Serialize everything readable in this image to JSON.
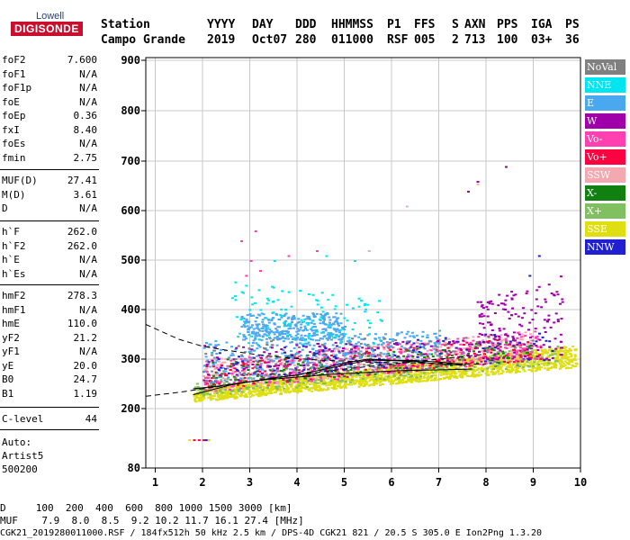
{
  "logo": {
    "top": "Lowell",
    "main": "DIGISONDE"
  },
  "header": {
    "labels": [
      "Station",
      "YYYY",
      "DAY",
      "DDD",
      "HHMMSS",
      "P1",
      "FFS",
      "S",
      "AXN",
      "PPS",
      "IGA",
      "PS"
    ],
    "values": [
      "Campo Grande",
      "2019",
      "Oct07",
      "280",
      "011000",
      "RSF",
      "005",
      "2",
      "713",
      "100",
      "03+",
      "36"
    ]
  },
  "params": {
    "group1": [
      {
        "name": "foF2",
        "value": "7.600"
      },
      {
        "name": "foF1",
        "value": "N/A"
      },
      {
        "name": "foF1p",
        "value": "N/A"
      },
      {
        "name": "foE",
        "value": "N/A"
      },
      {
        "name": "foEp",
        "value": "0.36"
      },
      {
        "name": "fxI",
        "value": "8.40"
      },
      {
        "name": "foEs",
        "value": "N/A"
      },
      {
        "name": "fmin",
        "value": "2.75"
      }
    ],
    "group2": [
      {
        "name": "MUF(D)",
        "value": "27.41"
      },
      {
        "name": "M(D)",
        "value": "3.61"
      },
      {
        "name": "D",
        "value": "N/A"
      }
    ],
    "group3": [
      {
        "name": "h`F",
        "value": "262.0"
      },
      {
        "name": "h`F2",
        "value": "262.0"
      },
      {
        "name": "h`E",
        "value": "N/A"
      },
      {
        "name": "h`Es",
        "value": "N/A"
      }
    ],
    "group4": [
      {
        "name": "hmF2",
        "value": "278.3"
      },
      {
        "name": "hmF1",
        "value": "N/A"
      },
      {
        "name": "hmE",
        "value": "110.0"
      },
      {
        "name": "yF2",
        "value": "21.2"
      },
      {
        "name": "yF1",
        "value": "N/A"
      },
      {
        "name": "yE",
        "value": "20.0"
      },
      {
        "name": "B0",
        "value": "24.7"
      },
      {
        "name": "B1",
        "value": "1.19"
      }
    ],
    "group5": [
      {
        "name": "C-level",
        "value": "44"
      }
    ]
  },
  "auto": {
    "line1": "Auto:",
    "line2": "Artist5",
    "line3": "500200"
  },
  "legend": [
    {
      "label": "NoVal",
      "color": "#808080"
    },
    {
      "label": "NNE",
      "color": "#00e5f0"
    },
    {
      "label": "E",
      "color": "#4aa8f0"
    },
    {
      "label": "W",
      "color": "#a000a8"
    },
    {
      "label": "Vo-",
      "color": "#ff40b0"
    },
    {
      "label": "Vo+",
      "color": "#ff0040"
    },
    {
      "label": "SSW",
      "color": "#f4a8b0"
    },
    {
      "label": "X-",
      "color": "#108010"
    },
    {
      "label": "X+",
      "color": "#80c060"
    },
    {
      "label": "SSE",
      "color": "#dede10"
    },
    {
      "label": "NNW",
      "color": "#2020d0"
    }
  ],
  "footer": {
    "line1": "D     100  200  400  600  800 1000 1500 3000 [km]",
    "line2": "MUF    7.9  8.0  8.5  9.2 10.2 11.7 16.1 27.4 [MHz]",
    "line3": "CGK21_2019280011000.RSF / 184fx512h 50 kHz 2.5 km / DPS-4D CGK21 821 / 20.5 S 305.0 E Ion2Png 1.3.20"
  },
  "chart_data": {
    "type": "scatter",
    "xlim": [
      0.8,
      10
    ],
    "ylim": [
      80,
      900
    ],
    "xticks": [
      1,
      2,
      3,
      4,
      5,
      6,
      7,
      8,
      9,
      10
    ],
    "yticks": [
      80,
      200,
      300,
      400,
      500,
      600,
      700,
      800,
      900
    ],
    "grid": true,
    "legend_placement": "right",
    "bands": [
      {
        "series": "SSE",
        "color": "#dede10",
        "x": [
          1.8,
          9.9
        ],
        "y_low": [
          215,
          285
        ],
        "y_high": [
          240,
          330
        ],
        "density": 2.2
      },
      {
        "series": "X+",
        "color": "#80c060",
        "x": [
          1.8,
          9.5
        ],
        "y_low": [
          225,
          290
        ],
        "y_high": [
          255,
          330
        ],
        "density": 0.4
      },
      {
        "series": "SSW",
        "color": "#f4a8b0",
        "x": [
          2.0,
          9.0
        ],
        "y_low": [
          235,
          300
        ],
        "y_high": [
          300,
          360
        ],
        "density": 0.7
      },
      {
        "series": "Vo-",
        "color": "#ff40b0",
        "x": [
          2.0,
          9.2
        ],
        "y_low": [
          235,
          300
        ],
        "y_high": [
          300,
          360
        ],
        "density": 0.5
      },
      {
        "series": "Vo+",
        "color": "#ff0040",
        "x": [
          2.0,
          9.2
        ],
        "y_low": [
          240,
          300
        ],
        "y_high": [
          290,
          350
        ],
        "density": 0.3
      },
      {
        "series": "X-",
        "color": "#108010",
        "x": [
          2.0,
          9.0
        ],
        "y_low": [
          240,
          300
        ],
        "y_high": [
          300,
          340
        ],
        "density": 0.25
      },
      {
        "series": "E",
        "color": "#4aa8f0",
        "x": [
          2.8,
          5.0
        ],
        "y_low": [
          340,
          340
        ],
        "y_high": [
          395,
          395
        ],
        "density": 1.5
      },
      {
        "series": "E",
        "color": "#4aa8f0",
        "x": [
          2.0,
          7.0
        ],
        "y_low": [
          250,
          300
        ],
        "y_high": [
          340,
          360
        ],
        "density": 0.7
      },
      {
        "series": "NNE",
        "color": "#00e5f0",
        "x": [
          2.6,
          5.8
        ],
        "y_low": [
          330,
          330
        ],
        "y_high": [
          460,
          420
        ],
        "density": 0.35
      },
      {
        "series": "W",
        "color": "#a000a8",
        "x": [
          7.8,
          9.6
        ],
        "y_low": [
          300,
          300
        ],
        "y_high": [
          420,
          470
        ],
        "density": 0.9
      },
      {
        "series": "W",
        "color": "#a000a8",
        "x": [
          2.0,
          7.8
        ],
        "y_low": [
          250,
          300
        ],
        "y_high": [
          330,
          340
        ],
        "density": 0.25
      },
      {
        "series": "NNW",
        "color": "#2020d0",
        "x": [
          2.2,
          9.4
        ],
        "y_low": [
          260,
          300
        ],
        "y_high": [
          320,
          360
        ],
        "density": 0.12
      },
      {
        "series": "NoVal",
        "color": "#808080",
        "x": [
          2.0,
          9.0
        ],
        "y_low": [
          240,
          290
        ],
        "y_high": [
          340,
          350
        ],
        "density": 0.15
      }
    ],
    "scatter_extra": [
      {
        "series": "Vo-",
        "color": "#ff40b0",
        "points": [
          [
            2.8,
            540
          ],
          [
            3.0,
            500
          ],
          [
            2.9,
            470
          ],
          [
            3.2,
            480
          ],
          [
            3.8,
            510
          ],
          [
            4.4,
            520
          ],
          [
            3.1,
            560
          ]
        ]
      },
      {
        "series": "NNE",
        "color": "#00e5f0",
        "points": [
          [
            3.5,
            500
          ],
          [
            4.6,
            510
          ],
          [
            2.9,
            450
          ],
          [
            5.2,
            500
          ]
        ]
      },
      {
        "series": "W",
        "color": "#a000a8",
        "points": [
          [
            7.8,
            660
          ],
          [
            8.4,
            690
          ],
          [
            7.6,
            640
          ]
        ]
      },
      {
        "series": "SSW",
        "color": "#f4a8b0",
        "points": [
          [
            7.8,
            655
          ],
          [
            6.3,
            610
          ],
          [
            5.5,
            520
          ]
        ]
      },
      {
        "series": "NNW",
        "color": "#2020d0",
        "points": [
          [
            9.1,
            510
          ],
          [
            8.9,
            470
          ]
        ]
      },
      {
        "series": "Vo+",
        "color": "#ff0040",
        "points": [
          [
            1.8,
            138
          ],
          [
            2.0,
            138
          ],
          [
            2.1,
            138
          ],
          [
            1.9,
            138
          ]
        ]
      },
      {
        "series": "SSE",
        "color": "#dede10",
        "points": [
          [
            1.7,
            138
          ],
          [
            2.1,
            138
          ]
        ]
      },
      {
        "series": "NNW",
        "color": "#2020d0",
        "points": [
          [
            2.05,
            138
          ]
        ]
      }
    ],
    "lines": [
      {
        "style": "dashed",
        "x": [
          0.8,
          1.5,
          2.0,
          2.5,
          3.0,
          3.5,
          4.0,
          4.5,
          5.0,
          5.5,
          6.0,
          6.5,
          7.0,
          7.5,
          8.0
        ],
        "y": [
          370,
          340,
          326,
          318,
          311,
          305,
          301,
          298,
          296,
          294,
          293,
          292,
          291,
          290,
          290
        ]
      },
      {
        "style": "dashed",
        "x": [
          0.8,
          1.5,
          2.0,
          2.5,
          3.0,
          3.5,
          4.0,
          4.5,
          5.0,
          5.5,
          6.0,
          6.5,
          7.0,
          7.5,
          8.0
        ],
        "y": [
          225,
          233,
          240,
          247,
          254,
          261,
          268,
          274,
          280,
          285,
          290,
          295,
          300,
          305,
          310
        ]
      },
      {
        "style": "solid",
        "x": [
          1.8,
          2.2,
          2.6,
          3.0,
          3.5,
          4.0,
          4.5,
          5.0,
          5.5,
          6.0,
          6.5,
          7.0,
          7.5
        ],
        "y": [
          228,
          238,
          248,
          254,
          262,
          268,
          278,
          288,
          298,
          297,
          295,
          290,
          288
        ]
      },
      {
        "style": "solid",
        "x": [
          1.8,
          2.3,
          2.8,
          3.3,
          3.8,
          4.3,
          4.8,
          5.3,
          5.8,
          6.3,
          6.8,
          7.3,
          7.7
        ],
        "y": [
          240,
          245,
          252,
          258,
          262,
          266,
          270,
          272,
          275,
          277,
          278,
          279,
          280
        ]
      },
      {
        "style": "solid",
        "x": [
          4.6,
          5.0,
          5.5,
          6.0,
          6.5,
          7.0,
          7.5
        ],
        "y": [
          282,
          292,
          300,
          298,
          297,
          294,
          290
        ]
      }
    ]
  }
}
